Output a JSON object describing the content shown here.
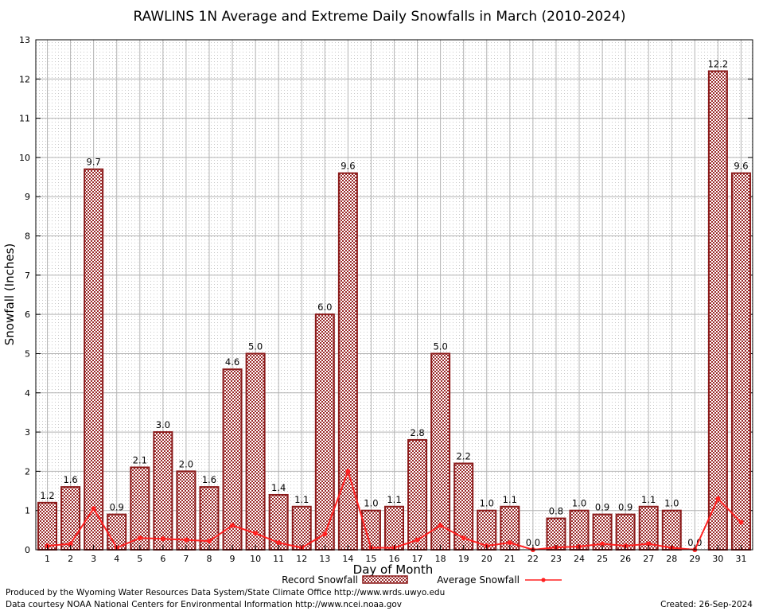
{
  "chart_data": {
    "type": "bar",
    "title": "RAWLINS 1N Average and Extreme Daily Snowfalls in March (2010-2024)",
    "xlabel": "Day of Month",
    "ylabel": "Snowfall (Inches)",
    "ylim": [
      0,
      13
    ],
    "yticks": [
      "0",
      "1",
      "2",
      "3",
      "4",
      "5",
      "6",
      "7",
      "8",
      "9",
      "10",
      "11",
      "12",
      "13"
    ],
    "categories": [
      "1",
      "2",
      "3",
      "4",
      "5",
      "6",
      "7",
      "8",
      "9",
      "10",
      "11",
      "12",
      "13",
      "14",
      "15",
      "16",
      "17",
      "18",
      "19",
      "20",
      "21",
      "22",
      "23",
      "24",
      "25",
      "26",
      "27",
      "28",
      "29",
      "30",
      "31"
    ],
    "grid": true,
    "legend_placement": "bottom",
    "series": [
      {
        "name": "Record Snowfall",
        "kind": "bar",
        "color": "#8b1a1a",
        "values": [
          1.2,
          1.6,
          9.7,
          0.9,
          2.1,
          3.0,
          2.0,
          1.6,
          4.6,
          5.0,
          1.4,
          1.1,
          6.0,
          9.6,
          1.0,
          1.1,
          2.8,
          5.0,
          2.2,
          1.0,
          1.1,
          0.0,
          0.8,
          1.0,
          0.9,
          0.9,
          1.1,
          1.0,
          0.0,
          12.2,
          9.6
        ],
        "labels": [
          "1.2",
          "1.6",
          "9.7",
          "0.9",
          "2.1",
          "3.0",
          "2.0",
          "1.6",
          "4.6",
          "5.0",
          "1.4",
          "1.1",
          "6.0",
          "9.6",
          "1.0",
          "1.1",
          "2.8",
          "5.0",
          "2.2",
          "1.0",
          "1.1",
          "0.0",
          "0.8",
          "1.0",
          "0.9",
          "0.9",
          "1.1",
          "1.0",
          "0.0",
          "12.2",
          "9.6"
        ]
      },
      {
        "name": "Average Snowfall",
        "kind": "line",
        "color": "#ff2020",
        "values": [
          0.1,
          0.15,
          1.05,
          0.05,
          0.3,
          0.28,
          0.25,
          0.22,
          0.62,
          0.42,
          0.18,
          0.05,
          0.4,
          2.0,
          0.05,
          0.05,
          0.25,
          0.62,
          0.3,
          0.1,
          0.18,
          0.0,
          0.06,
          0.08,
          0.15,
          0.1,
          0.15,
          0.05,
          0.0,
          1.3,
          0.7
        ]
      }
    ]
  },
  "footer": {
    "produced_by": "Produced by the Wyoming Water Resources Data System/State Climate Office http://www.wrds.uwyo.edu",
    "courtesy": "Data courtesy NOAA National Centers for Environmental Information http://www.ncei.noaa.gov",
    "created": "Created:  26-Sep-2024"
  }
}
